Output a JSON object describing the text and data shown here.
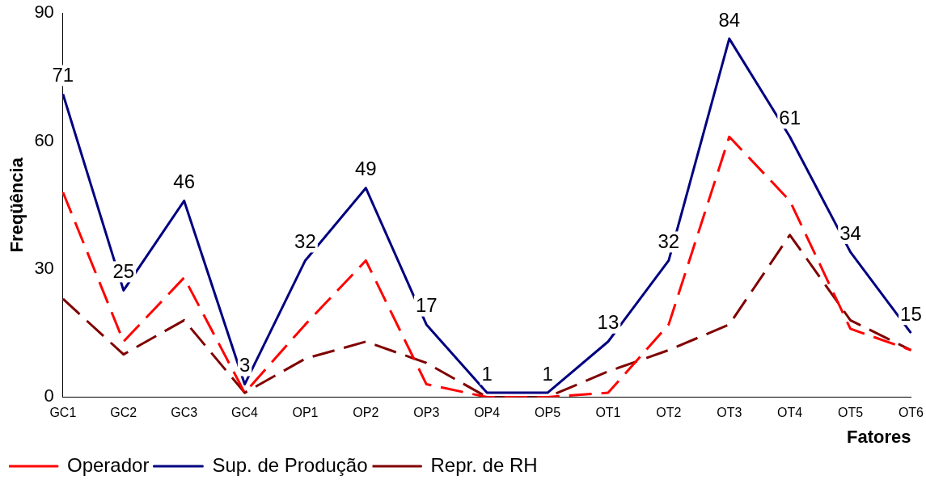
{
  "chart_data": {
    "type": "line",
    "xlabel": "Fatores",
    "ylabel": "Freqüência",
    "categories": [
      "GC1",
      "GC2",
      "GC3",
      "GC4",
      "OP1",
      "OP2",
      "OP3",
      "OP4",
      "OP5",
      "OT1",
      "OT2",
      "OT3",
      "OT4",
      "OT5",
      "OT6"
    ],
    "series": [
      {
        "name": "Operador",
        "color": "#ff0000",
        "line_style": "dashed",
        "values": [
          48,
          13,
          28,
          1,
          17,
          32,
          3,
          0,
          0,
          1,
          17,
          61,
          46,
          16,
          11
        ]
      },
      {
        "name": "Sup. de Produção",
        "color": "#000080",
        "line_style": "solid",
        "values": [
          71,
          25,
          46,
          3,
          32,
          49,
          17,
          1,
          1,
          13,
          32,
          84,
          61,
          34,
          15
        ],
        "value_labels": [
          "71",
          "25",
          "46",
          "3",
          "32",
          "49",
          "17",
          "1",
          "1",
          "13",
          "32",
          "84",
          "61",
          "34",
          "15"
        ]
      },
      {
        "name": "Repr. de RH",
        "color": "#800000",
        "line_style": "dashed",
        "values": [
          23,
          10,
          18,
          1,
          9,
          13,
          8,
          0,
          0,
          6,
          11,
          17,
          38,
          18,
          11
        ]
      }
    ],
    "ylim": [
      0,
      90
    ],
    "yticks": [
      0,
      30,
      60,
      90
    ],
    "grid": false,
    "legend": "bottom",
    "marker": "none"
  }
}
